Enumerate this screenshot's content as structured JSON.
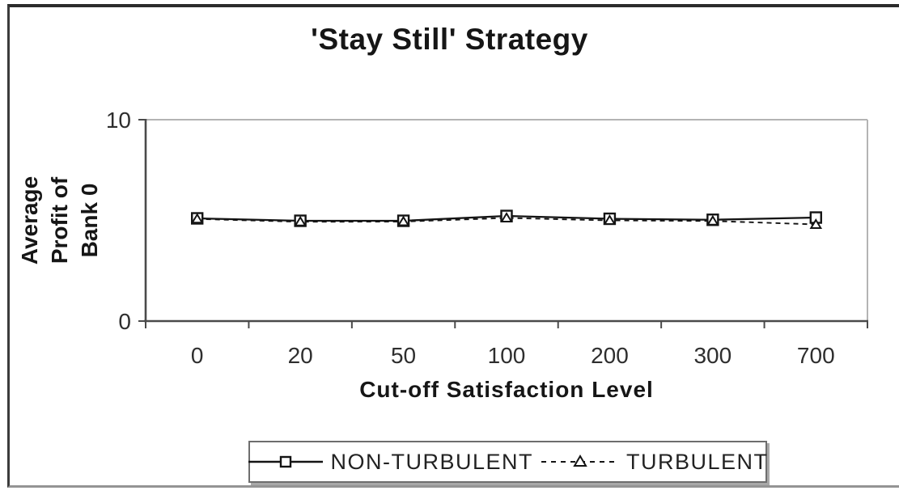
{
  "figure": {
    "title": "'Stay Still' Strategy"
  },
  "chart_data": {
    "type": "line",
    "title": "'Stay Still' Strategy",
    "xlabel": "Cut-off Satisfaction Level",
    "ylabel": "Average Profit of\nBank 0",
    "categories": [
      "0",
      "20",
      "50",
      "100",
      "200",
      "300",
      "700"
    ],
    "ylim": [
      0,
      10
    ],
    "y_ticks": [
      0,
      10
    ],
    "grid": false,
    "legend_position": "bottom",
    "series": [
      {
        "name": "NON-TURBULENT",
        "marker": "square",
        "line_style": "solid",
        "color": "#141414",
        "values": [
          5.1,
          4.98,
          4.98,
          5.22,
          5.08,
          5.03,
          5.14
        ]
      },
      {
        "name": "TURBULENT",
        "marker": "triangle",
        "line_style": "dashed",
        "color": "#141414",
        "values": [
          5.07,
          4.93,
          4.94,
          5.12,
          5.0,
          4.97,
          4.8
        ]
      }
    ]
  },
  "colors": {
    "axis": "#4a4a4a",
    "plot_border": "#b4b4b4",
    "tick_text": "#2e2e2e",
    "series_line": "#141414",
    "marker_fill": "#ffffff"
  }
}
